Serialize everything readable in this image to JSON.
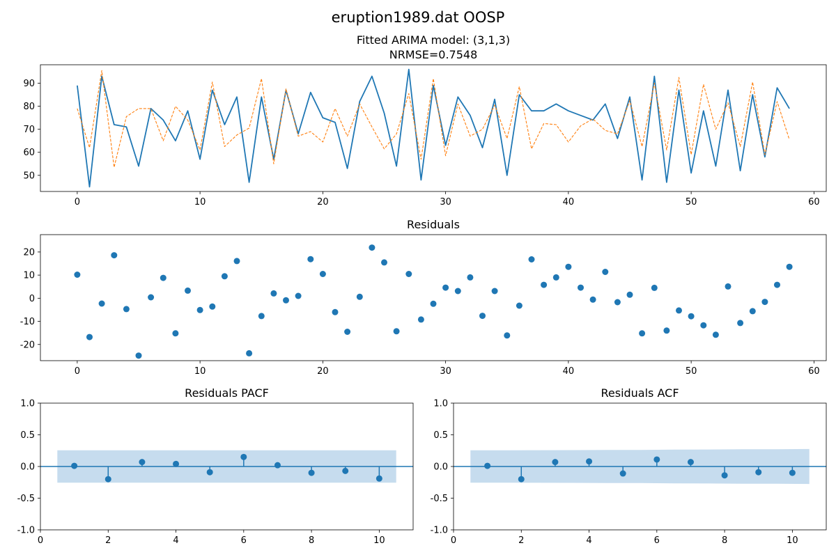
{
  "suptitle": "eruption1989.dat OOSP",
  "colors": {
    "actual": "#1f77b4",
    "fitted": "#ff7f0e",
    "band": "#c6dcee"
  },
  "chart_data": [
    {
      "id": "fit",
      "type": "line",
      "title": "Fitted ARIMA model: (3,1,3)",
      "subtitle": "NRMSE=0.7548",
      "xlim": [
        -3,
        61
      ],
      "ylim": [
        43,
        98
      ],
      "xticks": [
        0,
        10,
        20,
        30,
        40,
        50,
        60
      ],
      "yticks": [
        50,
        60,
        70,
        80,
        90
      ],
      "series": [
        {
          "style": "solid",
          "x": [
            0,
            1,
            2,
            3,
            4,
            5,
            6,
            7,
            8,
            9,
            10,
            11,
            12,
            13,
            14,
            15,
            16,
            17,
            18,
            19,
            20,
            21,
            22,
            23,
            24,
            25,
            26,
            27,
            28,
            29,
            30,
            31,
            32,
            33,
            34,
            35,
            36,
            37,
            38,
            39,
            40,
            41,
            42,
            43,
            44,
            45,
            46,
            47,
            48,
            49,
            50,
            51,
            52,
            53,
            54,
            55,
            56,
            57,
            58
          ],
          "y": [
            89,
            45,
            93,
            72,
            71,
            54,
            79,
            74,
            65,
            78,
            57,
            87,
            72,
            84,
            47,
            84,
            57,
            87,
            68,
            86,
            75,
            73,
            53,
            82,
            93,
            77,
            54,
            96,
            48,
            89,
            63,
            84,
            76,
            62,
            83,
            50,
            85,
            78,
            78,
            81,
            78,
            76,
            74,
            81,
            66,
            84,
            48,
            93,
            47,
            87,
            51,
            78,
            54,
            87,
            52,
            85,
            58,
            88,
            79
          ]
        },
        {
          "style": "dashed",
          "x": [
            0,
            1,
            2,
            3,
            4,
            5,
            6,
            7,
            8,
            9,
            10,
            11,
            12,
            13,
            14,
            15,
            16,
            17,
            18,
            19,
            20,
            21,
            22,
            23,
            24,
            25,
            26,
            27,
            28,
            29,
            30,
            31,
            32,
            33,
            34,
            35,
            36,
            37,
            38,
            39,
            40,
            41,
            42,
            43,
            44,
            45,
            46,
            47,
            48,
            49,
            50,
            51,
            52,
            53,
            54,
            55,
            56,
            57,
            58
          ],
          "y": [
            79,
            62,
            95.5,
            53.5,
            75.5,
            79,
            79,
            65,
            80,
            74,
            61,
            90.5,
            62.5,
            67.5,
            70.5,
            92,
            55,
            87.5,
            67,
            69,
            64.5,
            79,
            67,
            81,
            71,
            61.5,
            68,
            85.5,
            57,
            92,
            58.5,
            81,
            67,
            70,
            80.5,
            66,
            88.5,
            61.5,
            72.5,
            72,
            64.5,
            71.5,
            74.5,
            69.5,
            68,
            82.5,
            62.5,
            90,
            61,
            92.5,
            59,
            89.5,
            70,
            81.5,
            62.5,
            90.5,
            59,
            82,
            65.5
          ]
        }
      ]
    },
    {
      "id": "resid",
      "type": "scatter",
      "title": "Residuals",
      "xlim": [
        -3,
        61
      ],
      "ylim": [
        -27,
        27.5
      ],
      "xticks": [
        0,
        10,
        20,
        30,
        40,
        50,
        60
      ],
      "yticks": [
        -20,
        -10,
        0,
        10,
        20
      ],
      "x": [
        0,
        1,
        2,
        3,
        4,
        5,
        6,
        7,
        8,
        9,
        10,
        11,
        12,
        13,
        14,
        15,
        16,
        17,
        18,
        19,
        20,
        21,
        22,
        23,
        24,
        25,
        26,
        27,
        28,
        29,
        30,
        31,
        32,
        33,
        34,
        35,
        36,
        37,
        38,
        39,
        40,
        41,
        42,
        43,
        44,
        45,
        46,
        47,
        48,
        49,
        50,
        51,
        52,
        53,
        54,
        55,
        56,
        57,
        58
      ],
      "y": [
        10.2,
        -16.8,
        -2.3,
        18.6,
        -4.7,
        -24.8,
        0.4,
        8.8,
        -15.2,
        3.3,
        -5.1,
        -3.6,
        9.5,
        16.1,
        -23.8,
        -7.7,
        2.1,
        -0.9,
        1,
        16.9,
        10.5,
        -6,
        -14.5,
        0.6,
        21.9,
        15.5,
        -14.3,
        10.5,
        -9.2,
        -2.4,
        4.6,
        3.1,
        9,
        -7.6,
        3.1,
        -16.1,
        -3.2,
        16.8,
        5.8,
        9,
        13.6,
        4.6,
        -0.6,
        11.4,
        -1.7,
        1.5,
        -15.2,
        4.5,
        -14,
        -5.3,
        -7.8,
        -11.7,
        -15.8,
        5.1,
        -10.7,
        -5.6,
        -1.6,
        5.8,
        13.6
      ]
    },
    {
      "id": "pacf",
      "type": "stem",
      "title": "Residuals PACF",
      "xlim": [
        0,
        11
      ],
      "ylim": [
        -1,
        1
      ],
      "xticks": [
        0,
        2,
        4,
        6,
        8,
        10
      ],
      "yticks": [
        -1.0,
        -0.5,
        0.0,
        0.5,
        1.0
      ],
      "band": {
        "x": [
          0.5,
          10.5
        ],
        "upper": [
          0.255,
          0.255
        ],
        "lower": [
          -0.255,
          -0.255
        ]
      },
      "lags": [
        1,
        2,
        3,
        4,
        5,
        6,
        7,
        8,
        9,
        10
      ],
      "values": [
        0.01,
        -0.2,
        0.07,
        0.04,
        -0.09,
        0.15,
        0.02,
        -0.1,
        -0.07,
        -0.19
      ]
    },
    {
      "id": "acf",
      "type": "stem",
      "title": "Residuals ACF",
      "xlim": [
        0,
        11
      ],
      "ylim": [
        -1,
        1
      ],
      "xticks": [
        0,
        2,
        4,
        6,
        8,
        10
      ],
      "yticks": [
        -1.0,
        -0.5,
        0.0,
        0.5,
        1.0
      ],
      "band": {
        "x": [
          0.5,
          1.5,
          2.5,
          3.5,
          4.5,
          5.5,
          6.5,
          7.5,
          8.5,
          9.5,
          10.5
        ],
        "upper": [
          0.255,
          0.255,
          0.257,
          0.258,
          0.26,
          0.262,
          0.266,
          0.268,
          0.271,
          0.273,
          0.276
        ],
        "lower": [
          -0.255,
          -0.255,
          -0.257,
          -0.258,
          -0.26,
          -0.262,
          -0.266,
          -0.268,
          -0.271,
          -0.273,
          -0.276
        ]
      },
      "lags": [
        1,
        2,
        3,
        4,
        5,
        6,
        7,
        8,
        9,
        10
      ],
      "values": [
        0.01,
        -0.2,
        0.07,
        0.08,
        -0.11,
        0.11,
        0.07,
        -0.14,
        -0.09,
        -0.1
      ]
    }
  ]
}
